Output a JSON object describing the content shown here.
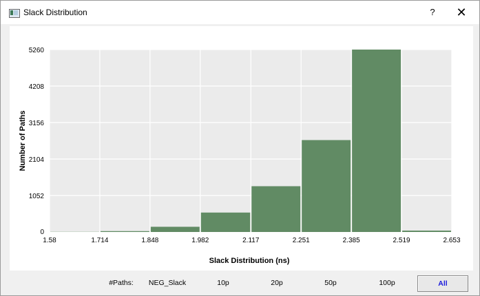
{
  "window": {
    "title": "Slack Distribution",
    "help_label": "?",
    "close_label": "✕"
  },
  "chart_data": {
    "type": "bar",
    "title": "",
    "xlabel": "Slack Distribution (ns)",
    "ylabel": "Number of Paths",
    "x_ticks": [
      "1.58",
      "1.714",
      "1.848",
      "1.982",
      "2.117",
      "2.251",
      "2.385",
      "2.519",
      "2.653"
    ],
    "y_ticks": [
      "0",
      "1052",
      "2104",
      "3156",
      "4208",
      "5260"
    ],
    "ylim": [
      0,
      5260
    ],
    "bins": [
      {
        "from": 1.58,
        "to": 1.714,
        "value": 5
      },
      {
        "from": 1.714,
        "to": 1.848,
        "value": 25
      },
      {
        "from": 1.848,
        "to": 1.982,
        "value": 150
      },
      {
        "from": 1.982,
        "to": 2.117,
        "value": 560
      },
      {
        "from": 2.117,
        "to": 2.251,
        "value": 1320
      },
      {
        "from": 2.251,
        "to": 2.385,
        "value": 2650
      },
      {
        "from": 2.385,
        "to": 2.519,
        "value": 5260
      },
      {
        "from": 2.519,
        "to": 2.653,
        "value": 40
      }
    ],
    "bar_color": "#618b64",
    "plot_background": "#ebebeb",
    "grid": true
  },
  "bottom_bar": {
    "paths_label": "#Paths:",
    "buttons": [
      "NEG_Slack",
      "10p",
      "20p",
      "50p",
      "100p",
      "All"
    ],
    "active": "All"
  }
}
